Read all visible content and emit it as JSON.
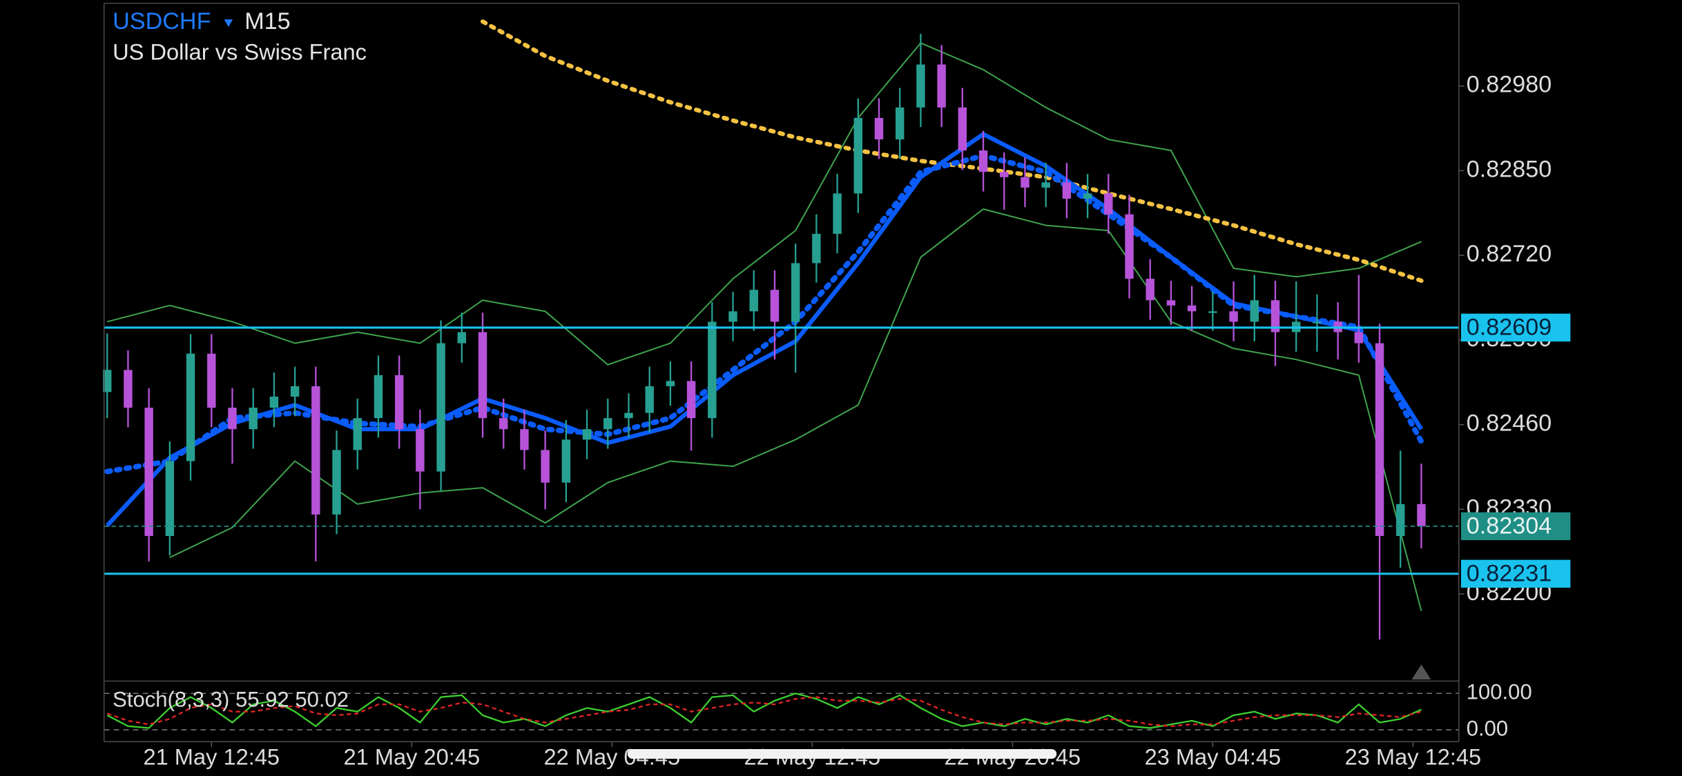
{
  "chart_data": [
    {
      "type": "candlestick",
      "symbol": "USDCHF",
      "timeframe": "M15",
      "title": "US Dollar vs Swiss Franc",
      "up_color": "#27a092",
      "down_color": "#b653d9",
      "open": [
        0.8251,
        0.82544,
        0.82486,
        0.82289,
        0.82404,
        0.82569,
        0.82486,
        0.82453,
        0.82486,
        0.82503,
        0.82519,
        0.82322,
        0.82421,
        0.8247,
        0.82536,
        0.82453,
        0.82388,
        0.82585,
        0.82602,
        0.8247,
        0.82453,
        0.82421,
        0.82371,
        0.82437,
        0.82453,
        0.8247,
        0.82478,
        0.82519,
        0.82527,
        0.8247,
        0.82618,
        0.82634,
        0.82667,
        0.82618,
        0.82708,
        0.82753,
        0.82815,
        0.82931,
        0.82898,
        0.82947,
        0.83013,
        0.82947,
        0.82881,
        0.82848,
        0.8284,
        0.82824,
        0.82832,
        0.82807,
        0.82815,
        0.82783,
        0.82684,
        0.82651,
        0.82643,
        0.82634,
        0.82634,
        0.82618,
        0.82651,
        0.82602,
        0.82618,
        0.82618,
        0.82602,
        0.82585,
        0.82289,
        0.82338
      ],
      "high": [
        0.826,
        0.82574,
        0.82516,
        0.82434,
        0.82599,
        0.82599,
        0.82516,
        0.82516,
        0.8254,
        0.82549,
        0.82549,
        0.82451,
        0.825,
        0.82566,
        0.82566,
        0.82483,
        0.8262,
        0.82632,
        0.82632,
        0.825,
        0.82483,
        0.82451,
        0.82467,
        0.82483,
        0.825,
        0.82508,
        0.82549,
        0.82557,
        0.82557,
        0.82648,
        0.82664,
        0.82697,
        0.82697,
        0.82738,
        0.82783,
        0.82845,
        0.82961,
        0.82961,
        0.82977,
        0.8306,
        0.83043,
        0.82977,
        0.82911,
        0.82878,
        0.8287,
        0.82862,
        0.82862,
        0.82845,
        0.82845,
        0.82813,
        0.82714,
        0.82681,
        0.82673,
        0.82664,
        0.8268,
        0.8269,
        0.82681,
        0.8268,
        0.8266,
        0.82648,
        0.8269,
        0.82615,
        0.8242,
        0.824
      ],
      "low": [
        0.8247,
        0.82456,
        0.8225,
        0.82259,
        0.82374,
        0.82456,
        0.824,
        0.82423,
        0.82456,
        0.82473,
        0.8225,
        0.82292,
        0.82391,
        0.8244,
        0.82423,
        0.8233,
        0.82358,
        0.82555,
        0.8244,
        0.82423,
        0.82391,
        0.8233,
        0.82341,
        0.82407,
        0.82423,
        0.8244,
        0.82448,
        0.82489,
        0.8242,
        0.8244,
        0.82588,
        0.82604,
        0.8256,
        0.8254,
        0.82678,
        0.82723,
        0.82785,
        0.82868,
        0.82868,
        0.82917,
        0.82917,
        0.82851,
        0.82818,
        0.8279,
        0.82794,
        0.82794,
        0.82777,
        0.82777,
        0.82753,
        0.82654,
        0.82621,
        0.82613,
        0.82604,
        0.82604,
        0.82588,
        0.82588,
        0.8255,
        0.82572,
        0.82572,
        0.8256,
        0.82555,
        0.8213,
        0.8224,
        0.8227
      ],
      "close": [
        0.82544,
        0.82486,
        0.82289,
        0.82404,
        0.82569,
        0.82486,
        0.82453,
        0.82486,
        0.82503,
        0.82519,
        0.82322,
        0.82421,
        0.8247,
        0.82536,
        0.82453,
        0.82388,
        0.82585,
        0.82602,
        0.8247,
        0.82453,
        0.82421,
        0.82371,
        0.82437,
        0.82453,
        0.8247,
        0.82478,
        0.82519,
        0.82527,
        0.8247,
        0.82618,
        0.82634,
        0.82667,
        0.82618,
        0.82708,
        0.82753,
        0.82815,
        0.82931,
        0.82898,
        0.82947,
        0.83013,
        0.82947,
        0.82881,
        0.82848,
        0.8284,
        0.82824,
        0.82832,
        0.82807,
        0.82815,
        0.82783,
        0.82684,
        0.82651,
        0.82643,
        0.82634,
        0.82634,
        0.82618,
        0.82651,
        0.82602,
        0.82618,
        0.82618,
        0.82602,
        0.82585,
        0.82289,
        0.82338,
        0.82304
      ],
      "xlim": [
        -0.15,
        64.8
      ],
      "xticks": [
        {
          "value": 5,
          "label": "21 May 12:45"
        },
        {
          "value": 14.6,
          "label": "21 May 20:45"
        },
        {
          "value": 24.2,
          "label": "22 May 04:45"
        },
        {
          "value": 33.8,
          "label": "22 May 12:45"
        },
        {
          "value": 43.4,
          "label": "22 May 20:45"
        },
        {
          "value": 53,
          "label": "23 May 04:45"
        },
        {
          "value": 62.6,
          "label": "23 May 12:45"
        }
      ],
      "ylim": [
        0.82067,
        0.83107
      ],
      "yticks": [
        {
          "value": 0.8298,
          "label": "0.82980"
        },
        {
          "value": 0.8285,
          "label": "0.82850"
        },
        {
          "value": 0.8272,
          "label": "0.82720"
        },
        {
          "value": 0.8259,
          "label": "0.82590"
        },
        {
          "value": 0.8246,
          "label": "0.82460"
        },
        {
          "value": 0.8233,
          "label": "0.82330"
        },
        {
          "value": 0.822,
          "label": "0.82200"
        }
      ],
      "price_lines": [
        {
          "value": 0.82609,
          "label": "0.82609",
          "color": "#19c3ee"
        },
        {
          "value": 0.82231,
          "label": "0.82231",
          "color": "#19c3ee"
        }
      ],
      "current_price": {
        "value": 0.82304,
        "label": "0.82304",
        "color": "#1f8f86"
      },
      "overlays": {
        "x": [
          0,
          3,
          6,
          9,
          12,
          15,
          18,
          21,
          24,
          27,
          30,
          33,
          36,
          39,
          42,
          45,
          48,
          51,
          54,
          57,
          60,
          63
        ],
        "series": [
          {
            "color": "#3fa34d",
            "width": 1.3,
            "dashed": false,
            "values": [
              0.82618,
              0.82643,
              0.82618,
              0.82585,
              0.82602,
              0.82585,
              0.82651,
              0.82634,
              0.82552,
              0.82585,
              0.82684,
              0.82758,
              0.82931,
              0.83046,
              0.83005,
              0.82947,
              0.82898,
              0.82881,
              0.827,
              0.82687,
              0.827,
              0.82741
            ]
          },
          {
            "color": "#3fa34d",
            "width": 1.3,
            "dashed": false,
            "values": [
              null,
              0.82256,
              0.82302,
              0.82404,
              0.82338,
              0.82355,
              0.82363,
              0.82309,
              0.82371,
              0.82404,
              0.82396,
              0.82437,
              0.8249,
              0.82717,
              0.82791,
              0.82766,
              0.82758,
              0.82618,
              0.82577,
              0.8256,
              0.82536,
              0.82174
            ]
          },
          {
            "color": "#f5c242",
            "width": 4,
            "dashed": true,
            "values": [
              null,
              null,
              null,
              null,
              null,
              null,
              0.83079,
              0.83026,
              0.82988,
              0.82955,
              0.82927,
              0.82901,
              0.82881,
              0.82865,
              0.82853,
              0.8284,
              0.82815,
              0.82791,
              0.82766,
              0.82737,
              0.82713,
              0.82681
            ]
          },
          {
            "color": "#0a5cff",
            "width": 5,
            "dashed": true,
            "values": [
              0.82388,
              0.82404,
              0.8247,
              0.82478,
              0.82462,
              0.82457,
              0.82486,
              0.82453,
              0.82445,
              0.8247,
              0.82544,
              0.82618,
              0.82725,
              0.82848,
              0.82873,
              0.82848,
              0.82783,
              0.82717,
              0.82643,
              0.82626,
              0.8261,
              0.82434
            ]
          },
          {
            "color": "#0a5cff",
            "width": 4,
            "dashed": false,
            "values": [
              0.82305,
              0.82409,
              0.82462,
              0.8249,
              0.82453,
              0.82453,
              0.825,
              0.8247,
              0.82432,
              0.82457,
              0.82536,
              0.82588,
              0.82708,
              0.8284,
              0.82906,
              0.82857,
              0.82791,
              0.82717,
              0.82646,
              0.82626,
              0.82605,
              0.82453
            ]
          }
        ]
      }
    },
    {
      "type": "line",
      "title": "Stoch(8,3,3) 55.92 50.02",
      "ylim": [
        -32.4,
        132.4
      ],
      "yticks": [
        {
          "value": 100,
          "label": "100.00"
        },
        {
          "value": 0,
          "label": "0.00"
        }
      ],
      "series": [
        {
          "color": "#3ccf2e",
          "dashed": false,
          "values": [
            40,
            10,
            5,
            60,
            90,
            60,
            20,
            70,
            80,
            50,
            10,
            60,
            50,
            90,
            60,
            20,
            90,
            95,
            40,
            20,
            30,
            10,
            40,
            60,
            50,
            70,
            90,
            60,
            20,
            90,
            95,
            50,
            80,
            100,
            85,
            60,
            90,
            70,
            95,
            60,
            30,
            10,
            20,
            10,
            30,
            15,
            30,
            20,
            40,
            10,
            5,
            15,
            25,
            10,
            40,
            50,
            30,
            45,
            40,
            20,
            70,
            20,
            30,
            55.92
          ]
        },
        {
          "color": "#e02525",
          "dashed": true,
          "values": [
            45,
            25,
            15,
            30,
            60,
            70,
            50,
            50,
            60,
            65,
            45,
            40,
            45,
            70,
            70,
            50,
            60,
            75,
            70,
            50,
            30,
            20,
            30,
            40,
            50,
            55,
            70,
            70,
            50,
            60,
            70,
            75,
            70,
            85,
            90,
            80,
            80,
            75,
            85,
            80,
            55,
            35,
            20,
            15,
            20,
            20,
            25,
            25,
            30,
            25,
            15,
            10,
            15,
            15,
            25,
            35,
            40,
            40,
            40,
            35,
            45,
            40,
            35,
            50.02
          ]
        }
      ]
    }
  ]
}
